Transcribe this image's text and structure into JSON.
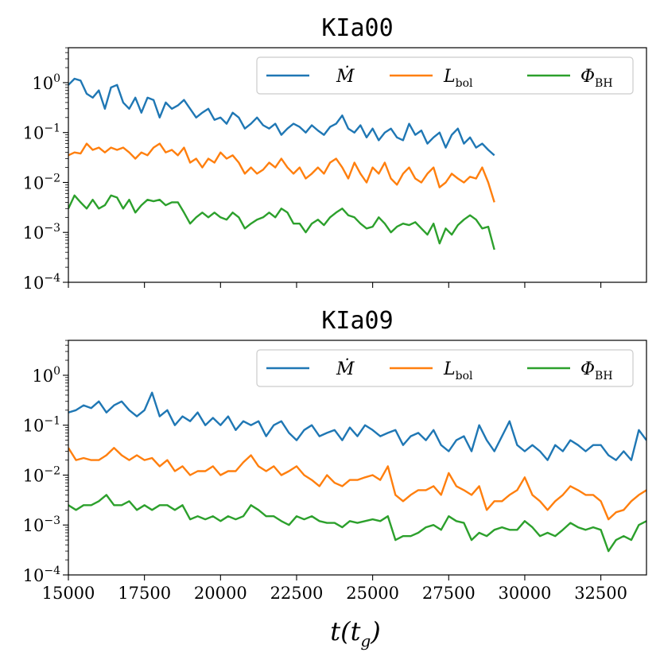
{
  "xlabel": "t(t_g)",
  "chart_data": [
    {
      "type": "line",
      "title": "KIa00",
      "xlabel": "",
      "ylabel": "",
      "yscale": "log",
      "xlim": [
        15000,
        34000
      ],
      "ylim_exp": [
        -4,
        0.7
      ],
      "yticks": [
        "10^0",
        "10^-1",
        "10^-2",
        "10^-3",
        "10^-4"
      ],
      "xticks": [],
      "legend_position": "top-right",
      "series": [
        {
          "name": "Mdot",
          "color": "#1f77b4",
          "x": [
            15000,
            15200,
            15400,
            15600,
            15800,
            16000,
            16200,
            16400,
            16600,
            16800,
            17000,
            17200,
            17400,
            17600,
            17800,
            18000,
            18200,
            18400,
            18600,
            18800,
            19000,
            19200,
            19400,
            19600,
            19800,
            20000,
            20200,
            20400,
            20600,
            20800,
            21000,
            21200,
            21400,
            21600,
            21800,
            22000,
            22200,
            22400,
            22600,
            22800,
            23000,
            23200,
            23400,
            23600,
            23800,
            24000,
            24200,
            24400,
            24600,
            24800,
            25000,
            25200,
            25400,
            25600,
            25800,
            26000,
            26200,
            26400,
            26600,
            26800,
            27000,
            27200,
            27400,
            27600,
            27800,
            28000,
            28200,
            28400,
            28600,
            28800,
            29000
          ],
          "values": [
            0.9,
            1.2,
            1.1,
            0.6,
            0.5,
            0.7,
            0.3,
            0.8,
            0.9,
            0.4,
            0.3,
            0.5,
            0.25,
            0.5,
            0.45,
            0.2,
            0.4,
            0.3,
            0.35,
            0.45,
            0.3,
            0.2,
            0.25,
            0.3,
            0.18,
            0.2,
            0.15,
            0.25,
            0.2,
            0.12,
            0.15,
            0.2,
            0.14,
            0.12,
            0.15,
            0.09,
            0.12,
            0.15,
            0.13,
            0.1,
            0.14,
            0.11,
            0.09,
            0.13,
            0.15,
            0.22,
            0.12,
            0.1,
            0.14,
            0.08,
            0.12,
            0.07,
            0.1,
            0.12,
            0.08,
            0.07,
            0.15,
            0.09,
            0.11,
            0.06,
            0.08,
            0.1,
            0.05,
            0.09,
            0.12,
            0.06,
            0.08,
            0.05,
            0.06,
            0.045,
            0.035
          ]
        },
        {
          "name": "Lbol",
          "color": "#ff7f0e",
          "x": [
            15000,
            15200,
            15400,
            15600,
            15800,
            16000,
            16200,
            16400,
            16600,
            16800,
            17000,
            17200,
            17400,
            17600,
            17800,
            18000,
            18200,
            18400,
            18600,
            18800,
            19000,
            19200,
            19400,
            19600,
            19800,
            20000,
            20200,
            20400,
            20600,
            20800,
            21000,
            21200,
            21400,
            21600,
            21800,
            22000,
            22200,
            22400,
            22600,
            22800,
            23000,
            23200,
            23400,
            23600,
            23800,
            24000,
            24200,
            24400,
            24600,
            24800,
            25000,
            25200,
            25400,
            25600,
            25800,
            26000,
            26200,
            26400,
            26600,
            26800,
            27000,
            27200,
            27400,
            27600,
            27800,
            28000,
            28200,
            28400,
            28600,
            28800,
            29000
          ],
          "values": [
            0.035,
            0.04,
            0.038,
            0.06,
            0.045,
            0.05,
            0.04,
            0.05,
            0.045,
            0.05,
            0.04,
            0.03,
            0.04,
            0.035,
            0.05,
            0.06,
            0.04,
            0.045,
            0.035,
            0.05,
            0.025,
            0.03,
            0.02,
            0.03,
            0.025,
            0.04,
            0.03,
            0.035,
            0.025,
            0.015,
            0.02,
            0.015,
            0.018,
            0.025,
            0.02,
            0.03,
            0.02,
            0.015,
            0.02,
            0.012,
            0.015,
            0.02,
            0.015,
            0.025,
            0.03,
            0.02,
            0.012,
            0.025,
            0.015,
            0.01,
            0.02,
            0.015,
            0.025,
            0.012,
            0.009,
            0.015,
            0.02,
            0.012,
            0.01,
            0.015,
            0.02,
            0.008,
            0.01,
            0.015,
            0.012,
            0.01,
            0.013,
            0.012,
            0.02,
            0.01,
            0.004
          ]
        },
        {
          "name": "PhiBH",
          "color": "#2ca02c",
          "x": [
            15000,
            15200,
            15400,
            15600,
            15800,
            16000,
            16200,
            16400,
            16600,
            16800,
            17000,
            17200,
            17400,
            17600,
            17800,
            18000,
            18200,
            18400,
            18600,
            18800,
            19000,
            19200,
            19400,
            19600,
            19800,
            20000,
            20200,
            20400,
            20600,
            20800,
            21000,
            21200,
            21400,
            21600,
            21800,
            22000,
            22200,
            22400,
            22600,
            22800,
            23000,
            23200,
            23400,
            23600,
            23800,
            24000,
            24200,
            24400,
            24600,
            24800,
            25000,
            25200,
            25400,
            25600,
            25800,
            26000,
            26200,
            26400,
            26600,
            26800,
            27000,
            27200,
            27400,
            27600,
            27800,
            28000,
            28200,
            28400,
            28600,
            28800,
            29000
          ],
          "values": [
            0.003,
            0.0055,
            0.004,
            0.003,
            0.0045,
            0.003,
            0.0035,
            0.0055,
            0.005,
            0.003,
            0.0045,
            0.0025,
            0.0035,
            0.0045,
            0.0042,
            0.0045,
            0.0035,
            0.004,
            0.004,
            0.0025,
            0.0015,
            0.002,
            0.0025,
            0.002,
            0.0025,
            0.002,
            0.0018,
            0.0025,
            0.002,
            0.0012,
            0.0015,
            0.0018,
            0.002,
            0.0025,
            0.002,
            0.003,
            0.0025,
            0.0015,
            0.0015,
            0.001,
            0.0015,
            0.0018,
            0.0014,
            0.002,
            0.0025,
            0.003,
            0.0022,
            0.002,
            0.0015,
            0.0012,
            0.0013,
            0.002,
            0.0015,
            0.001,
            0.0013,
            0.0015,
            0.0014,
            0.0016,
            0.0012,
            0.0009,
            0.0015,
            0.0006,
            0.0012,
            0.0009,
            0.0014,
            0.0018,
            0.0022,
            0.0018,
            0.0012,
            0.0013,
            0.00045
          ]
        }
      ],
      "legend": [
        "Ṁ",
        "L_bol",
        "Φ_BH"
      ]
    },
    {
      "type": "line",
      "title": "KIa09",
      "xlabel": "t(t_g)",
      "ylabel": "",
      "yscale": "log",
      "xlim": [
        15000,
        34000
      ],
      "ylim_exp": [
        -4,
        0.7
      ],
      "yticks": [
        "10^0",
        "10^-1",
        "10^-2",
        "10^-3",
        "10^-4"
      ],
      "xticks": [
        "15000",
        "17500",
        "20000",
        "22500",
        "25000",
        "27500",
        "30000",
        "32500"
      ],
      "legend_position": "top-right",
      "series": [
        {
          "name": "Mdot",
          "color": "#1f77b4",
          "x": [
            15000,
            15250,
            15500,
            15750,
            16000,
            16250,
            16500,
            16750,
            17000,
            17250,
            17500,
            17750,
            18000,
            18250,
            18500,
            18750,
            19000,
            19250,
            19500,
            19750,
            20000,
            20250,
            20500,
            20750,
            21000,
            21250,
            21500,
            21750,
            22000,
            22250,
            22500,
            22750,
            23000,
            23250,
            23500,
            23750,
            24000,
            24250,
            24500,
            24750,
            25000,
            25250,
            25500,
            25750,
            26000,
            26250,
            26500,
            26750,
            27000,
            27250,
            27500,
            27750,
            28000,
            28250,
            28500,
            28750,
            29000,
            29250,
            29500,
            29750,
            30000,
            30250,
            30500,
            30750,
            31000,
            31250,
            31500,
            31750,
            32000,
            32250,
            32500,
            32750,
            33000,
            33250,
            33500,
            33750,
            34000
          ],
          "values": [
            0.18,
            0.2,
            0.25,
            0.22,
            0.3,
            0.18,
            0.25,
            0.3,
            0.2,
            0.15,
            0.2,
            0.45,
            0.15,
            0.2,
            0.1,
            0.15,
            0.12,
            0.18,
            0.1,
            0.14,
            0.1,
            0.15,
            0.08,
            0.12,
            0.1,
            0.12,
            0.06,
            0.1,
            0.12,
            0.07,
            0.05,
            0.08,
            0.1,
            0.06,
            0.07,
            0.08,
            0.05,
            0.09,
            0.06,
            0.1,
            0.08,
            0.06,
            0.07,
            0.08,
            0.04,
            0.06,
            0.07,
            0.05,
            0.08,
            0.04,
            0.03,
            0.05,
            0.06,
            0.03,
            0.1,
            0.05,
            0.03,
            0.06,
            0.12,
            0.04,
            0.03,
            0.04,
            0.03,
            0.02,
            0.04,
            0.03,
            0.05,
            0.04,
            0.03,
            0.04,
            0.04,
            0.025,
            0.02,
            0.03,
            0.02,
            0.08,
            0.05
          ]
        },
        {
          "name": "Lbol",
          "color": "#ff7f0e",
          "x": [
            15000,
            15250,
            15500,
            15750,
            16000,
            16250,
            16500,
            16750,
            17000,
            17250,
            17500,
            17750,
            18000,
            18250,
            18500,
            18750,
            19000,
            19250,
            19500,
            19750,
            20000,
            20250,
            20500,
            20750,
            21000,
            21250,
            21500,
            21750,
            22000,
            22250,
            22500,
            22750,
            23000,
            23250,
            23500,
            23750,
            24000,
            24250,
            24500,
            24750,
            25000,
            25250,
            25500,
            25750,
            26000,
            26250,
            26500,
            26750,
            27000,
            27250,
            27500,
            27750,
            28000,
            28250,
            28500,
            28750,
            29000,
            29250,
            29500,
            29750,
            30000,
            30250,
            30500,
            30750,
            31000,
            31250,
            31500,
            31750,
            32000,
            32250,
            32500,
            32750,
            33000,
            33250,
            33500,
            33750,
            34000
          ],
          "values": [
            0.035,
            0.02,
            0.022,
            0.02,
            0.02,
            0.025,
            0.035,
            0.025,
            0.02,
            0.025,
            0.02,
            0.022,
            0.015,
            0.02,
            0.012,
            0.015,
            0.01,
            0.012,
            0.012,
            0.015,
            0.01,
            0.012,
            0.012,
            0.018,
            0.025,
            0.015,
            0.012,
            0.015,
            0.01,
            0.012,
            0.015,
            0.01,
            0.008,
            0.006,
            0.01,
            0.007,
            0.006,
            0.008,
            0.008,
            0.009,
            0.01,
            0.008,
            0.015,
            0.004,
            0.003,
            0.004,
            0.005,
            0.005,
            0.006,
            0.004,
            0.011,
            0.006,
            0.005,
            0.004,
            0.006,
            0.002,
            0.003,
            0.003,
            0.004,
            0.005,
            0.009,
            0.004,
            0.003,
            0.002,
            0.003,
            0.004,
            0.006,
            0.005,
            0.004,
            0.004,
            0.003,
            0.0013,
            0.0018,
            0.002,
            0.003,
            0.004,
            0.005
          ]
        },
        {
          "name": "PhiBH",
          "color": "#2ca02c",
          "x": [
            15000,
            15250,
            15500,
            15750,
            16000,
            16250,
            16500,
            16750,
            17000,
            17250,
            17500,
            17750,
            18000,
            18250,
            18500,
            18750,
            19000,
            19250,
            19500,
            19750,
            20000,
            20250,
            20500,
            20750,
            21000,
            21250,
            21500,
            21750,
            22000,
            22250,
            22500,
            22750,
            23000,
            23250,
            23500,
            23750,
            24000,
            24250,
            24500,
            24750,
            25000,
            25250,
            25500,
            25750,
            26000,
            26250,
            26500,
            26750,
            27000,
            27250,
            27500,
            27750,
            28000,
            28250,
            28500,
            28750,
            29000,
            29250,
            29500,
            29750,
            30000,
            30250,
            30500,
            30750,
            31000,
            31250,
            31500,
            31750,
            32000,
            32250,
            32500,
            32750,
            33000,
            33250,
            33500,
            33750,
            34000
          ],
          "values": [
            0.0025,
            0.002,
            0.0025,
            0.0025,
            0.003,
            0.004,
            0.0025,
            0.0025,
            0.003,
            0.002,
            0.0025,
            0.002,
            0.0025,
            0.0025,
            0.002,
            0.0025,
            0.0013,
            0.0015,
            0.0013,
            0.0015,
            0.0012,
            0.0015,
            0.0013,
            0.0015,
            0.0025,
            0.002,
            0.0015,
            0.0015,
            0.0012,
            0.001,
            0.0015,
            0.0013,
            0.0015,
            0.0012,
            0.0011,
            0.0011,
            0.0009,
            0.0012,
            0.0011,
            0.0012,
            0.0013,
            0.0012,
            0.0015,
            0.0005,
            0.0006,
            0.0006,
            0.0007,
            0.0009,
            0.001,
            0.0008,
            0.0015,
            0.0012,
            0.0011,
            0.0005,
            0.0007,
            0.0006,
            0.0008,
            0.0009,
            0.0008,
            0.0008,
            0.0012,
            0.0009,
            0.0006,
            0.0007,
            0.0006,
            0.0008,
            0.0011,
            0.0009,
            0.0008,
            0.0009,
            0.0008,
            0.0003,
            0.0005,
            0.0006,
            0.0005,
            0.001,
            0.0012
          ]
        }
      ],
      "legend": [
        "Ṁ",
        "L_bol",
        "Φ_BH"
      ]
    }
  ]
}
